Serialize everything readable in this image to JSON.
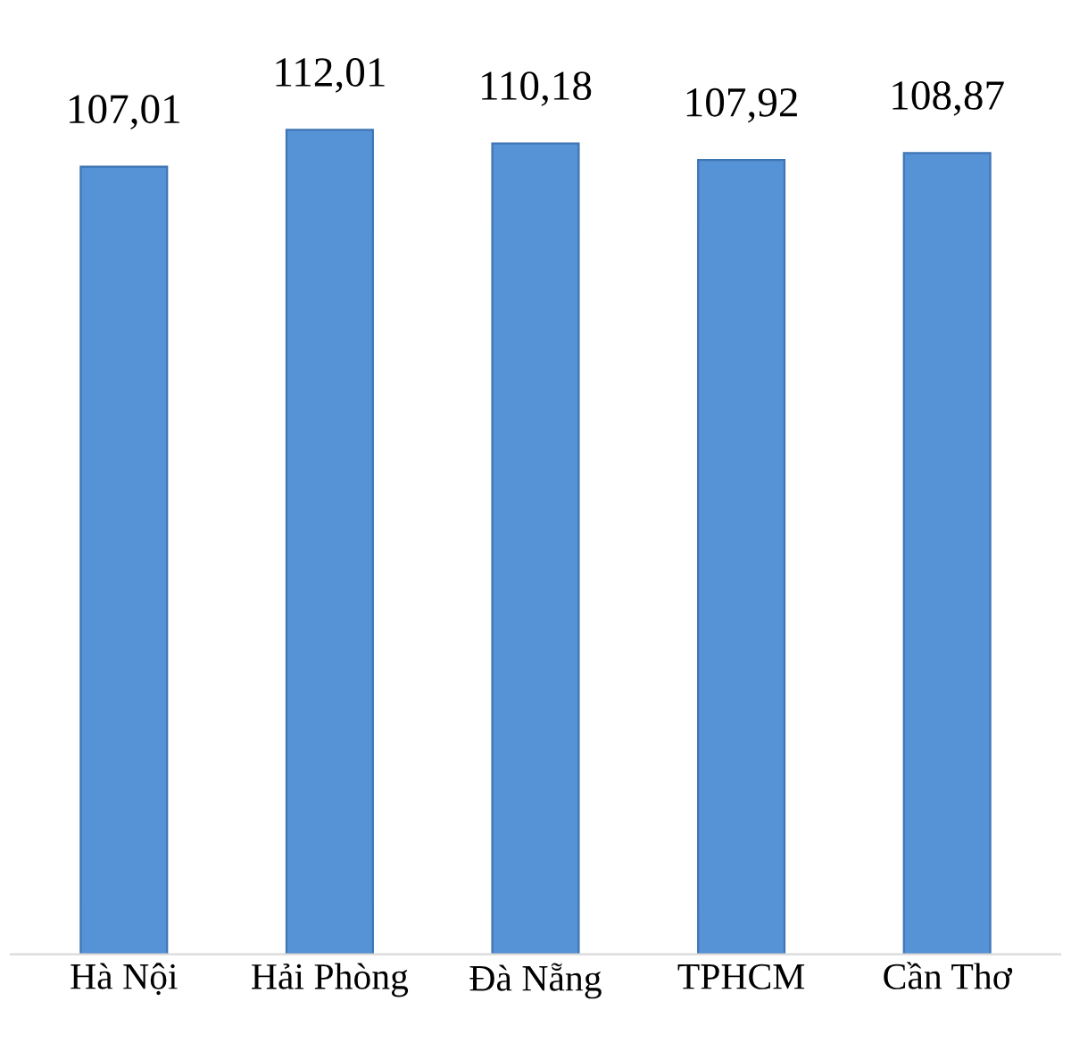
{
  "chart_data": {
    "type": "bar",
    "categories": [
      "Hà Nội",
      "Hải Phòng",
      "Đà Nẵng",
      "TPHCM",
      "Cần Thơ"
    ],
    "values": [
      107.01,
      112.01,
      110.18,
      107.92,
      108.87
    ],
    "value_labels": [
      "107,01",
      "112,01",
      "110,18",
      "107,92",
      "108,87"
    ],
    "color": "#5592d6",
    "grid": false,
    "legend": false
  }
}
